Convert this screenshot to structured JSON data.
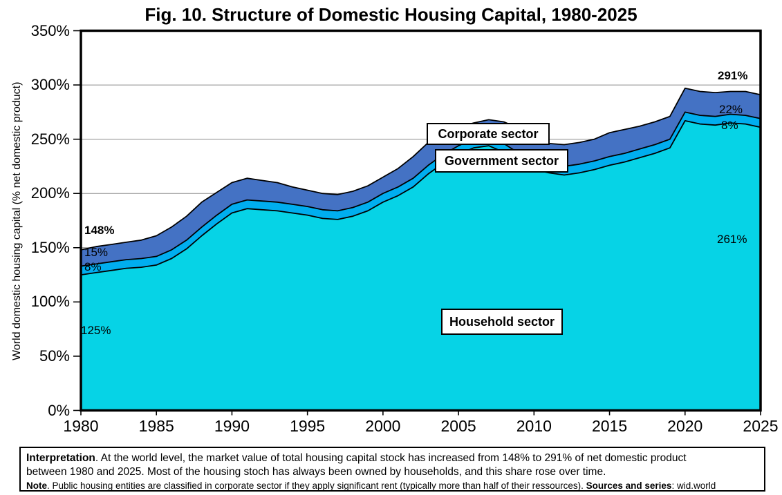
{
  "title": "Fig. 10. Structure of Domestic Housing Capital, 1980-2025",
  "y_axis": {
    "label": "World domestic housing capital (% net domestic product)",
    "tick_labels": [
      "0%",
      "50%",
      "100%",
      "150%",
      "200%",
      "250%",
      "300%",
      "350%"
    ],
    "min": 0,
    "max": 350,
    "step": 50
  },
  "x_axis": {
    "tick_labels": [
      "1980",
      "1985",
      "1990",
      "1995",
      "2000",
      "2005",
      "2010",
      "2015",
      "2020",
      "2025"
    ],
    "min": 1980,
    "max": 2025,
    "step": 5
  },
  "sector_labels": {
    "corporate": "Corporate sector",
    "government": "Government sector",
    "household": "Household sector"
  },
  "annotations": {
    "left_total": "148%",
    "left_corporate": "15%",
    "left_government": "8%",
    "left_household": "125%",
    "right_total": "291%",
    "right_corporate": "22%",
    "right_government": "8%",
    "right_household": "261%"
  },
  "colors": {
    "household": "#06d3e6",
    "government": "#00aeef",
    "corporate": "#4472c4",
    "gridline": "#8c8c8c",
    "axis": "#000000"
  },
  "chart_data": {
    "type": "area",
    "stacked": true,
    "title": "Fig. 10. Structure of Domestic Housing Capital, 1980-2025",
    "xlabel": "",
    "ylabel": "World domestic housing capital (% net domestic product)",
    "ylim": [
      0,
      350
    ],
    "xlim": [
      1980,
      2025
    ],
    "grid": "horizontal",
    "legend_position": "labels-on-chart",
    "x": [
      1980,
      1981,
      1982,
      1983,
      1984,
      1985,
      1986,
      1987,
      1988,
      1989,
      1990,
      1991,
      1992,
      1993,
      1994,
      1995,
      1996,
      1997,
      1998,
      1999,
      2000,
      2001,
      2002,
      2003,
      2004,
      2005,
      2006,
      2007,
      2008,
      2009,
      2010,
      2011,
      2012,
      2013,
      2014,
      2015,
      2016,
      2017,
      2018,
      2019,
      2020,
      2021,
      2022,
      2023,
      2024,
      2025
    ],
    "series": [
      {
        "name": "Household sector",
        "values": [
          125,
          127,
          129,
          131,
          132,
          134,
          140,
          149,
          161,
          172,
          182,
          186,
          185,
          184,
          182,
          180,
          177,
          176,
          179,
          184,
          192,
          198,
          206,
          218,
          228,
          236,
          242,
          244,
          238,
          229,
          222,
          219,
          217,
          219,
          222,
          226,
          229,
          233,
          237,
          242,
          267,
          264,
          263,
          265,
          264,
          261
        ]
      },
      {
        "name": "Government sector",
        "values": [
          8,
          8,
          8,
          8,
          8,
          8,
          8,
          8,
          8,
          8,
          8,
          8,
          8,
          8,
          8,
          8,
          8,
          8,
          8,
          8,
          8,
          8,
          8,
          8,
          8,
          8,
          8,
          8,
          8,
          8,
          8,
          8,
          8,
          8,
          8,
          8,
          8,
          8,
          8,
          8,
          8,
          8,
          8,
          8,
          8,
          8
        ]
      },
      {
        "name": "Corporate sector",
        "values": [
          15,
          16,
          16,
          16,
          17,
          19,
          21,
          22,
          23,
          21,
          20,
          20,
          19,
          18,
          16,
          15,
          15,
          15,
          15,
          15,
          15,
          17,
          20,
          21,
          19,
          17,
          15,
          16,
          20,
          23,
          19,
          19,
          20,
          20,
          20,
          22,
          22,
          21,
          21,
          21,
          22,
          22,
          22,
          21,
          22,
          22
        ]
      }
    ],
    "endpoint_totals": {
      "1980": 148,
      "2025": 291
    }
  },
  "note": {
    "lines": [
      {
        "size": "big",
        "segments": [
          {
            "t": "Interpretation",
            "b": true
          },
          {
            "t": ". At the world level, the market value of total housing capital stock has increased from 148% to 291% of net domestic product",
            "b": false
          }
        ]
      },
      {
        "size": "big",
        "segments": [
          {
            "t": "between 1980 and 2025. Most of the housing stoch has always been owned by households, and this share rose over time.",
            "b": false
          }
        ]
      },
      {
        "size": "small",
        "segments": [
          {
            "t": "Note",
            "b": true
          },
          {
            "t": ". Public housing entities are classified in corporate sector if they apply significant rent (typically more than half of their ressources). ",
            "b": false
          },
          {
            "t": "Sources and series",
            "b": true
          },
          {
            "t": ": wid.world",
            "b": false
          }
        ]
      }
    ]
  }
}
